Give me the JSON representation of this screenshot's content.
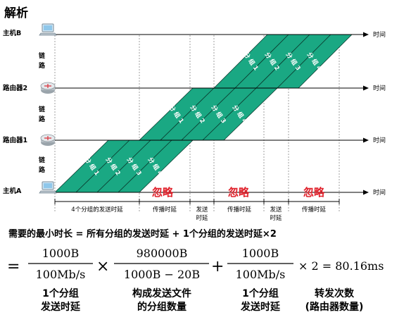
{
  "title": "解析",
  "nodes": [
    {
      "id": "hostB",
      "label": "主机B",
      "icon": "laptop-icon"
    },
    {
      "id": "router2",
      "label": "路由器2",
      "icon": "router-icon"
    },
    {
      "id": "router1",
      "label": "路由器1",
      "icon": "router-icon"
    },
    {
      "id": "hostA",
      "label": "主机A",
      "icon": "laptop-icon"
    }
  ],
  "time_label": "时间",
  "link_label_chars": [
    "链",
    "路"
  ],
  "packet_labels": [
    [
      "分",
      "组",
      "1"
    ],
    [
      "分",
      "组",
      "2"
    ],
    [
      "分",
      "组",
      "3"
    ],
    [
      "分",
      "组",
      "4"
    ]
  ],
  "ignore_label": "忽略",
  "segments": [
    {
      "lines": [
        "4个分组的发送时延"
      ]
    },
    {
      "lines": [
        "传播时延"
      ]
    },
    {
      "lines": [
        "发送",
        "时延"
      ]
    },
    {
      "lines": [
        "传播时延"
      ]
    },
    {
      "lines": [
        "发送",
        "时延"
      ]
    },
    {
      "lines": [
        "传播时延"
      ]
    }
  ],
  "formula_line": "需要的最小时长 = 所有分组的发送时延 + 1个分组的发送时延×2",
  "math": {
    "eq": "=",
    "f1_num": "1000B",
    "f1_den": "100Mb/s",
    "times": "×",
    "f2_num": "980000B",
    "f2_den": "1000B − 20B",
    "plus": "+",
    "f3_num": "1000B",
    "f3_den": "100Mb/s",
    "tail": "× 2 = 80.16ms"
  },
  "notes": [
    {
      "lines": [
        "1个分组",
        "发送时延"
      ]
    },
    {
      "lines": [
        "构成发送文件",
        "的分组数量"
      ]
    },
    {
      "lines": [
        "1个分组",
        "发送时延"
      ]
    },
    {
      "lines": [
        "转发次数",
        "(路由器数量)"
      ]
    }
  ],
  "colors": {
    "packet_fill": "#1aa883",
    "packet_stroke": "#0b3d30",
    "ignore_text": "#e0202a",
    "axis": "#000000",
    "guide": "#888888"
  }
}
